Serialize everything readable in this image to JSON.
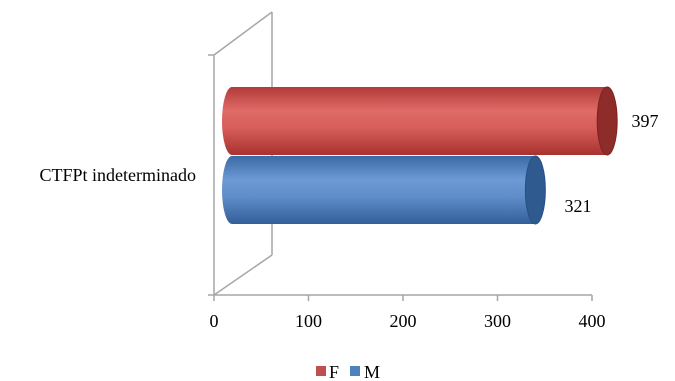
{
  "chart_data": {
    "type": "bar",
    "orientation": "horizontal",
    "style": "3d-cylinder",
    "categories": [
      "CTFPt indeterminado"
    ],
    "series": [
      {
        "name": "F",
        "values": [
          397
        ],
        "color": "#c0504d"
      },
      {
        "name": "M",
        "values": [
          321
        ],
        "color": "#4f81bd"
      }
    ],
    "xticks": [
      0,
      100,
      200,
      300,
      400
    ],
    "xlim": [
      0,
      400
    ],
    "data_labels": [
      "397",
      "321"
    ],
    "legend": {
      "position": "bottom",
      "entries": [
        "F",
        "M"
      ]
    },
    "grid": false
  }
}
